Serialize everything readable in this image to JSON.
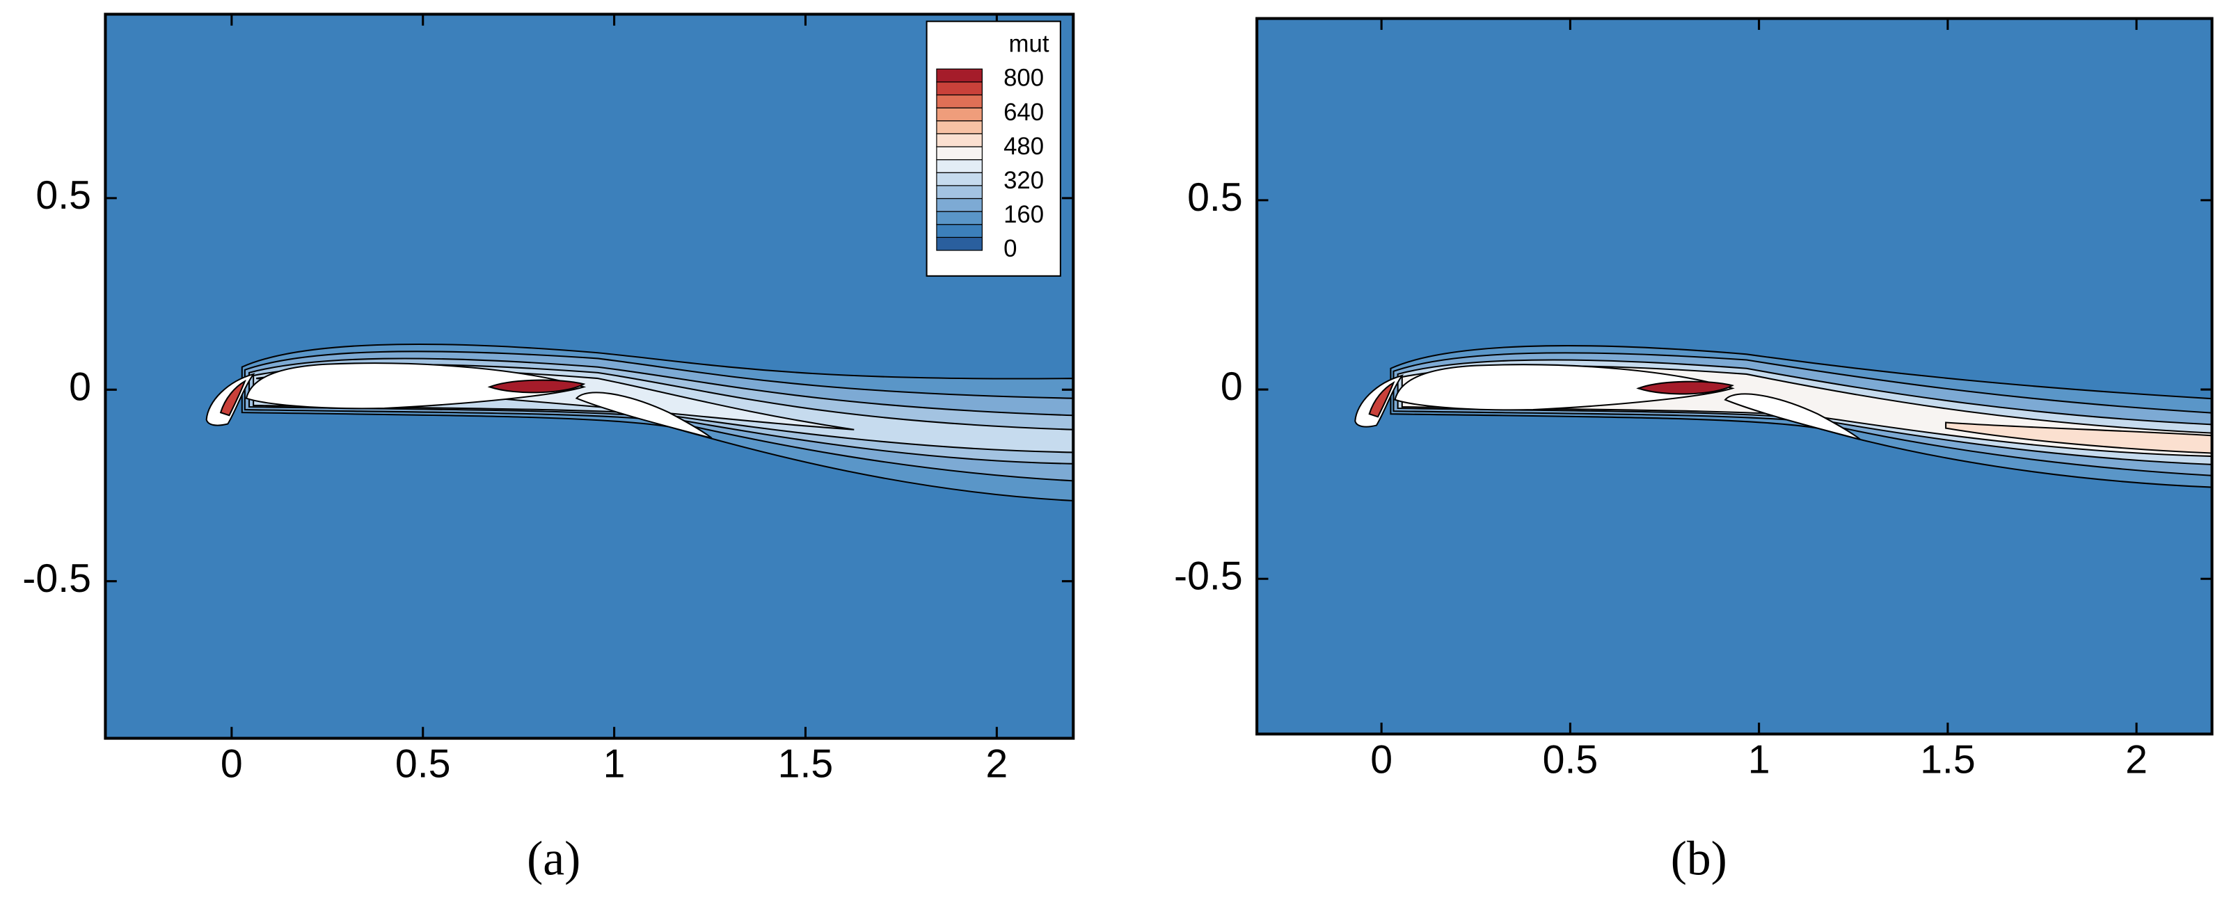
{
  "chart_data": [
    {
      "type": "contour",
      "caption": "(a)",
      "xlim": [
        -0.33,
        2.2
      ],
      "ylim": [
        -0.91,
        0.98
      ],
      "xticks": [
        0,
        0.5,
        1,
        1.5,
        2
      ],
      "yticks": [
        -0.5,
        0,
        0.5
      ],
      "colorbar": {
        "title": "mut",
        "lim": [
          0,
          850
        ],
        "ticks": [
          0,
          160,
          320,
          480,
          640,
          800
        ],
        "colors": [
          "#2a5f9e",
          "#3c80bb",
          "#5a96c8",
          "#7daad4",
          "#a3c3e1",
          "#c6dbee",
          "#e3edf6",
          "#f7f4f2",
          "#fbe0d0",
          "#f7c2a4",
          "#ef9d7b",
          "#e07056",
          "#c9413a",
          "#a51c2a"
        ]
      }
    },
    {
      "type": "contour",
      "caption": "(b)",
      "xlim": [
        -0.33,
        2.2
      ],
      "ylim": [
        -0.91,
        0.98
      ],
      "xticks": [
        0,
        0.5,
        1,
        1.5,
        2
      ],
      "yticks": [
        -0.5,
        0,
        0.5
      ]
    }
  ]
}
